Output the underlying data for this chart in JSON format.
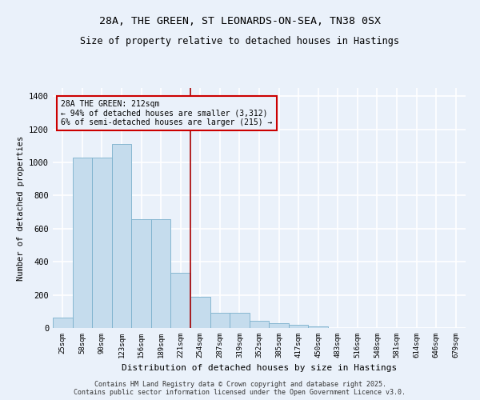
{
  "title1": "28A, THE GREEN, ST LEONARDS-ON-SEA, TN38 0SX",
  "title2": "Size of property relative to detached houses in Hastings",
  "xlabel": "Distribution of detached houses by size in Hastings",
  "ylabel": "Number of detached properties",
  "bar_labels": [
    "25sqm",
    "58sqm",
    "90sqm",
    "123sqm",
    "156sqm",
    "189sqm",
    "221sqm",
    "254sqm",
    "287sqm",
    "319sqm",
    "352sqm",
    "385sqm",
    "417sqm",
    "450sqm",
    "483sqm",
    "516sqm",
    "548sqm",
    "581sqm",
    "614sqm",
    "646sqm",
    "679sqm"
  ],
  "bar_values": [
    65,
    1030,
    1030,
    1110,
    655,
    655,
    335,
    190,
    90,
    90,
    42,
    27,
    20,
    12,
    0,
    0,
    0,
    0,
    0,
    0,
    0
  ],
  "bar_color": "#c5dced",
  "bar_edge_color": "#7ab0cc",
  "annotation_text": "28A THE GREEN: 212sqm\n← 94% of detached houses are smaller (3,312)\n6% of semi-detached houses are larger (215) →",
  "vline_x_index": 6,
  "ylim": [
    0,
    1450
  ],
  "yticks": [
    0,
    200,
    400,
    600,
    800,
    1000,
    1200,
    1400
  ],
  "bg_color": "#eaf1fa",
  "grid_color": "#ffffff",
  "footer": "Contains HM Land Registry data © Crown copyright and database right 2025.\nContains public sector information licensed under the Open Government Licence v3.0.",
  "annotation_box_edge_color": "#cc0000",
  "vline_color": "#aa0000",
  "title_fontsize": 9.5,
  "subtitle_fontsize": 8.5
}
